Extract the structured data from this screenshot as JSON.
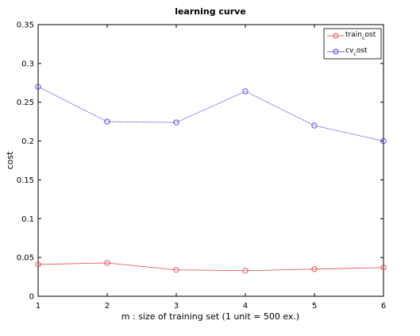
{
  "chart_data": {
    "type": "line",
    "title": "learning curve",
    "xlabel": "m : size of training set (1 unit = 500 ex.)",
    "ylabel": "cost",
    "x": [
      1,
      2,
      3,
      4,
      5,
      6
    ],
    "xlim": [
      1,
      6
    ],
    "ylim": [
      0,
      0.35
    ],
    "xticks": [
      "1",
      "2",
      "3",
      "4",
      "5",
      "6"
    ],
    "yticks": [
      "0",
      "0.05",
      "0.1",
      "0.15",
      "0.2",
      "0.25",
      "0.3",
      "0.35"
    ],
    "ytick_values": [
      0,
      0.05,
      0.1,
      0.15,
      0.2,
      0.25,
      0.3,
      0.35
    ],
    "grid": false,
    "legend_position": "top-right",
    "series": [
      {
        "name_main": "train",
        "name_sub": "c",
        "name_rest": "ost",
        "color": "#e8474a",
        "marker": "circle",
        "values": [
          0.041,
          0.043,
          0.034,
          0.033,
          0.035,
          0.037
        ]
      },
      {
        "name_main": "cv",
        "name_sub": "c",
        "name_rest": "ost",
        "color": "#3f3fe0",
        "marker": "circle",
        "values": [
          0.27,
          0.225,
          0.224,
          0.264,
          0.22,
          0.2
        ]
      }
    ]
  }
}
